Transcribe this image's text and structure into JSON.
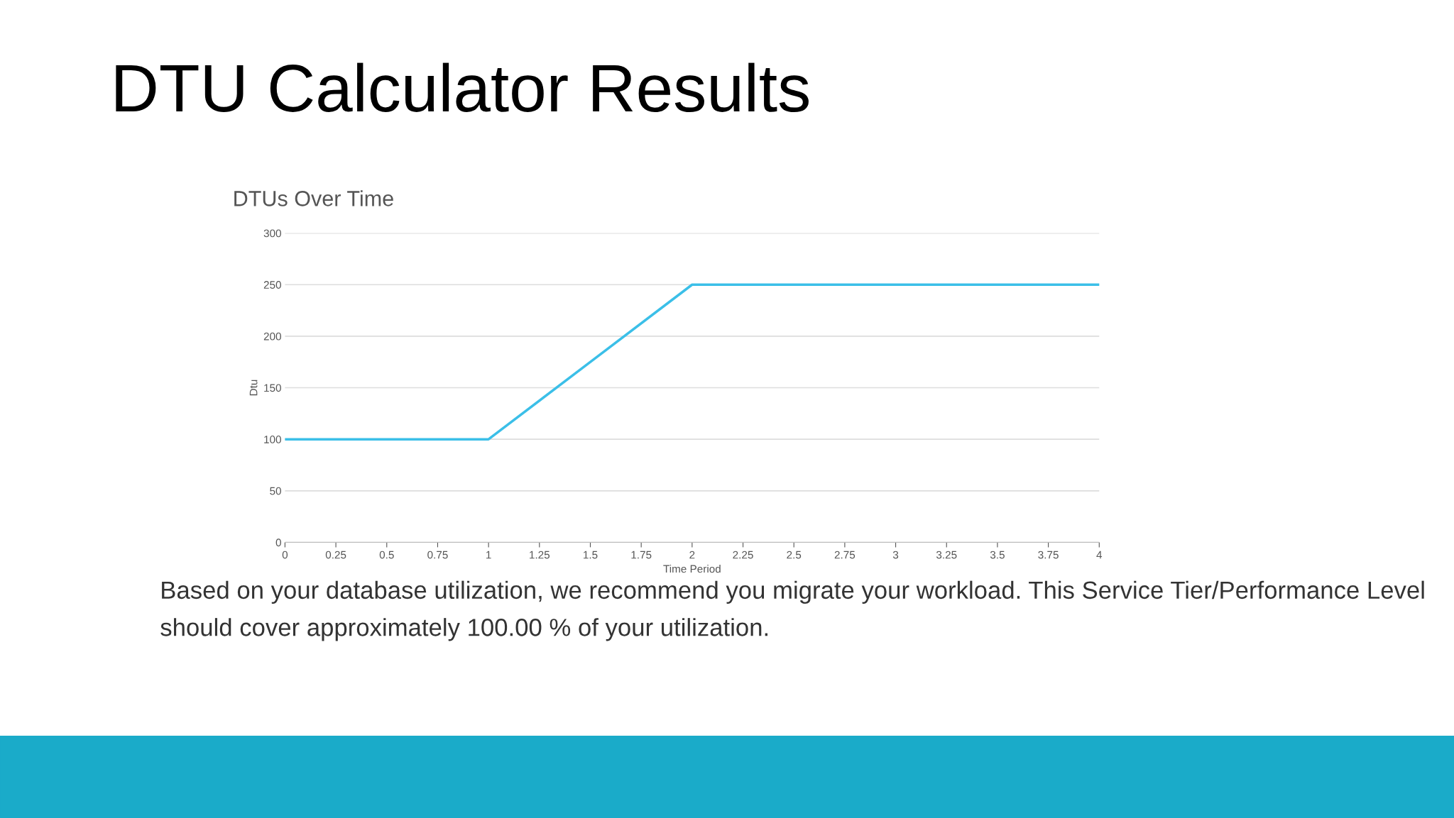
{
  "chart_data": {
    "type": "line",
    "title": "DTU Calculator Results",
    "subtitle": "DTUs Over Time",
    "xlabel": "Time Period",
    "ylabel": "Dtu",
    "x": [
      0,
      1,
      2,
      4
    ],
    "series": [
      {
        "color": "#3bbfe8",
        "values": [
          100,
          100,
          250,
          250
        ]
      }
    ],
    "xlim": [
      0,
      4
    ],
    "xticks": [
      0,
      0.25,
      0.5,
      0.75,
      1,
      1.25,
      1.5,
      1.75,
      2,
      2.25,
      2.5,
      2.75,
      3,
      3.25,
      3.5,
      3.75,
      4
    ],
    "ylim": [
      0,
      300
    ],
    "yticks": [
      0,
      50,
      100,
      150,
      200,
      250,
      300
    ],
    "grid": "y",
    "marker": "none",
    "line_style": "solid",
    "annotations": [
      "Based on your database utilization, we recommend you migrate your workload. This Service Tier/Performance Level should cover approximately 100.00 % of your utilization."
    ]
  }
}
